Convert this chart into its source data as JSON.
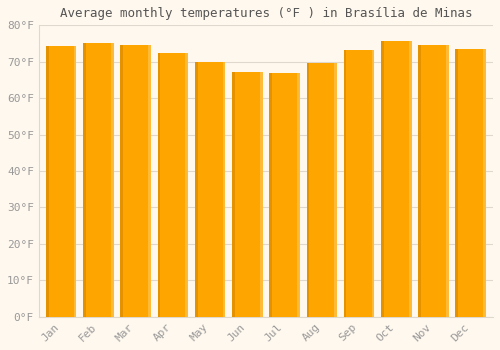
{
  "title": "Average monthly temperatures (°F ) in Brasília de Minas",
  "months": [
    "Jan",
    "Feb",
    "Mar",
    "Apr",
    "May",
    "Jun",
    "Jul",
    "Aug",
    "Sep",
    "Oct",
    "Nov",
    "Dec"
  ],
  "values": [
    74.3,
    75.0,
    74.7,
    72.5,
    70.0,
    67.3,
    66.9,
    69.6,
    73.2,
    75.6,
    74.7,
    73.6
  ],
  "bar_color_main": "#FFA500",
  "bar_color_left": "#CC8000",
  "bar_color_right": "#FFD070",
  "ylim": [
    0,
    80
  ],
  "yticks": [
    0,
    10,
    20,
    30,
    40,
    50,
    60,
    70,
    80
  ],
  "ytick_labels": [
    "0°F",
    "10°F",
    "20°F",
    "30°F",
    "40°F",
    "50°F",
    "60°F",
    "70°F",
    "80°F"
  ],
  "background_color": "#FFF8EE",
  "plot_bg_color": "#FFF8EE",
  "grid_color": "#E0D8CC",
  "title_fontsize": 9,
  "tick_fontsize": 8,
  "tick_color": "#999999",
  "bar_width": 0.82
}
